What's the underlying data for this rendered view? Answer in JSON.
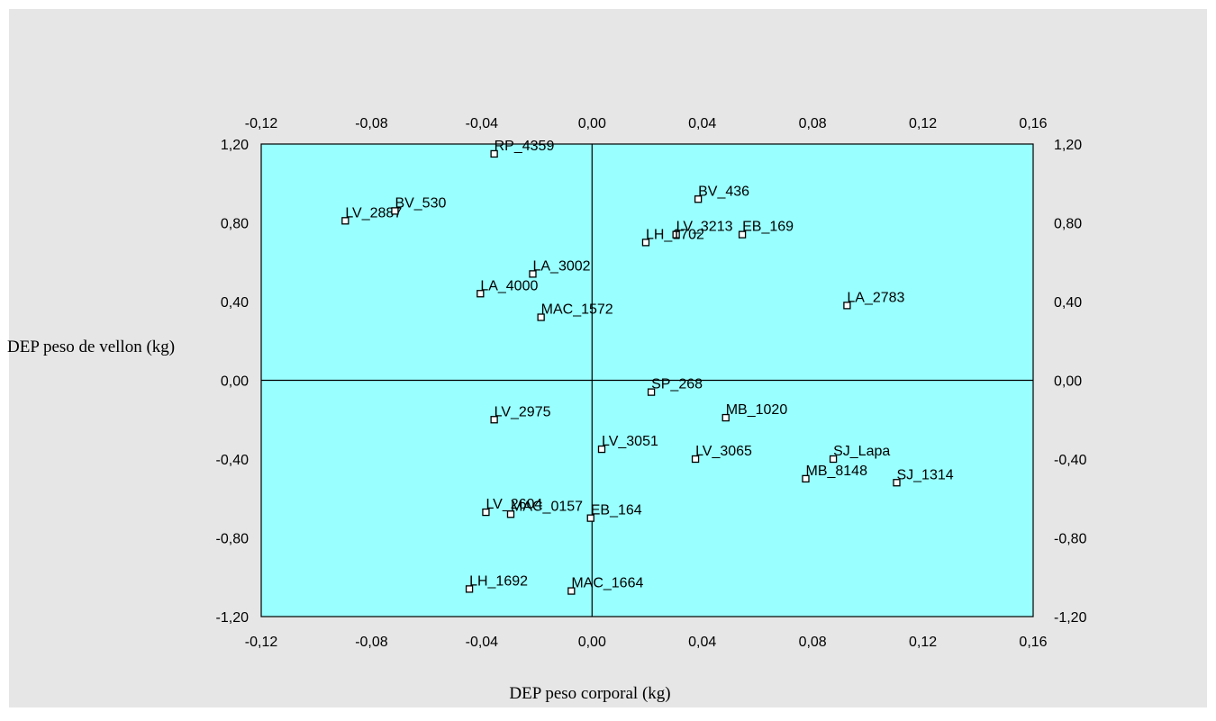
{
  "chart_data": {
    "type": "scatter",
    "title": "",
    "xlabel": "DEP peso corporal (kg)",
    "ylabel": "DEP peso de vellon (kg)",
    "xlim": [
      -0.12,
      0.16
    ],
    "ylim": [
      -1.2,
      1.2
    ],
    "x_ticks": [
      "-0,12",
      "-0,08",
      "-0,04",
      "0,00",
      "0,04",
      "0,08",
      "0,12",
      "0,16"
    ],
    "y_ticks": [
      "-1,20",
      "-0,80",
      "-0,40",
      "0,00",
      "0,40",
      "0,80",
      "1,20"
    ],
    "x_tick_values": [
      -0.12,
      -0.08,
      -0.04,
      0.0,
      0.04,
      0.08,
      0.12,
      0.16
    ],
    "y_tick_values": [
      -1.2,
      -0.8,
      -0.4,
      0.0,
      0.4,
      0.8,
      1.2
    ],
    "grid": false,
    "legend": "none",
    "colors": {
      "outer_background": "#e6e6e6",
      "plot_background": "#99ffff",
      "marker_fill": "#ffffff",
      "marker_stroke": "#000000",
      "axis": "#000000"
    },
    "points": [
      {
        "label": "RP_4359",
        "x": -0.0355,
        "y": 1.15
      },
      {
        "label": "BV_436",
        "x": 0.0385,
        "y": 0.92
      },
      {
        "label": "LV_2887",
        "x": -0.0895,
        "y": 0.81
      },
      {
        "label": "BV_530",
        "x": -0.0715,
        "y": 0.86
      },
      {
        "label": "LV_3213",
        "x": 0.0305,
        "y": 0.74
      },
      {
        "label": "EB_169",
        "x": 0.0545,
        "y": 0.74
      },
      {
        "label": "LH_1702",
        "x": 0.0195,
        "y": 0.7
      },
      {
        "label": "LA_3002",
        "x": -0.0215,
        "y": 0.54
      },
      {
        "label": "LA_4000",
        "x": -0.0405,
        "y": 0.44
      },
      {
        "label": "MAC_1572",
        "x": -0.0185,
        "y": 0.32
      },
      {
        "label": "LA_2783",
        "x": 0.0925,
        "y": 0.38
      },
      {
        "label": "SP_268",
        "x": 0.0215,
        "y": -0.06
      },
      {
        "label": "MB_1020",
        "x": 0.0485,
        "y": -0.19
      },
      {
        "label": "LV_2975",
        "x": -0.0355,
        "y": -0.2
      },
      {
        "label": "LV_3051",
        "x": 0.0035,
        "y": -0.35
      },
      {
        "label": "LV_3065",
        "x": 0.0375,
        "y": -0.4
      },
      {
        "label": "SJ_Lapa",
        "x": 0.0875,
        "y": -0.4
      },
      {
        "label": "MB_8148",
        "x": 0.0775,
        "y": -0.5
      },
      {
        "label": "SJ_1314",
        "x": 0.1105,
        "y": -0.52
      },
      {
        "label": "LV_2604",
        "x": -0.0385,
        "y": -0.67
      },
      {
        "label": "MAC_0157",
        "x": -0.0295,
        "y": -0.68
      },
      {
        "label": "EB_164",
        "x": -0.0005,
        "y": -0.7
      },
      {
        "label": "LH_1692",
        "x": -0.0445,
        "y": -1.06
      },
      {
        "label": "MAC_1664",
        "x": -0.0075,
        "y": -1.07
      }
    ]
  }
}
